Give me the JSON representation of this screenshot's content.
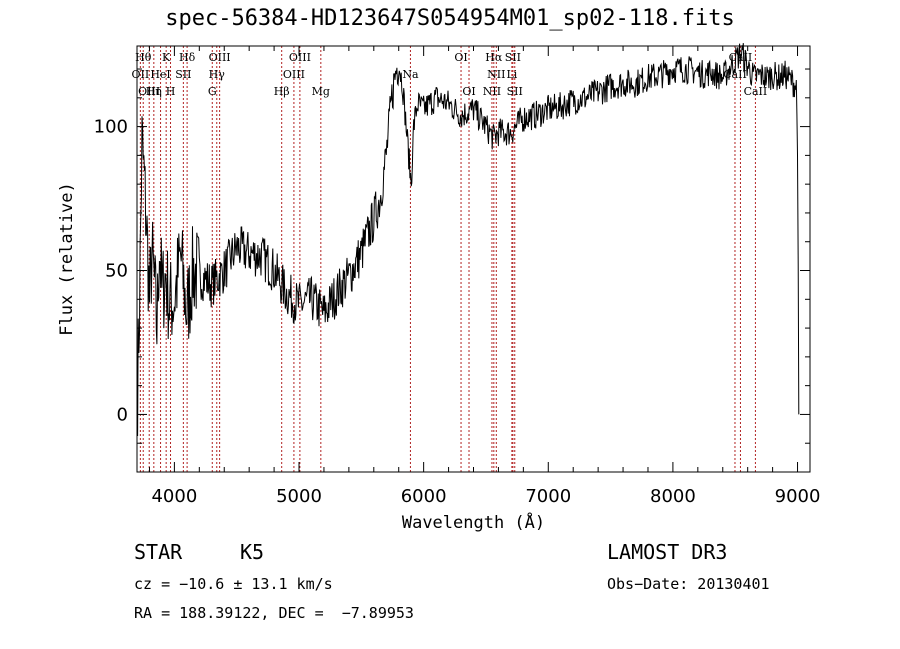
{
  "chart_data": {
    "type": "line",
    "title": "spec-56384-HD123647S054954M01_sp02-118.fits",
    "xlabel": "Wavelength (Å)",
    "ylabel": "Flux (relative)",
    "xlim": [
      3700,
      9100
    ],
    "ylim": [
      -20,
      128
    ],
    "xticks": [
      4000,
      5000,
      6000,
      7000,
      8000,
      9000
    ],
    "yticks": [
      0,
      50,
      100
    ],
    "series": [
      {
        "name": "flux",
        "x": [
          3700,
          3720,
          3740,
          3760,
          3780,
          3800,
          3820,
          3840,
          3860,
          3880,
          3900,
          3930,
          3960,
          4000,
          4050,
          4100,
          4150,
          4200,
          4250,
          4300,
          4400,
          4500,
          4600,
          4700,
          4800,
          4900,
          5000,
          5100,
          5200,
          5300,
          5400,
          5500,
          5600,
          5650,
          5700,
          5750,
          5780,
          5800,
          5830,
          5860,
          5880,
          5900,
          5920,
          5950,
          6000,
          6100,
          6200,
          6300,
          6400,
          6500,
          6560,
          6600,
          6700,
          6800,
          6900,
          7000,
          7100,
          7200,
          7300,
          7400,
          7500,
          7600,
          7700,
          7800,
          7900,
          8000,
          8100,
          8200,
          8250,
          8300,
          8350,
          8400,
          8500,
          8550,
          8600,
          8650,
          8700,
          8750,
          8800,
          8850,
          8900,
          8950,
          8990,
          9000,
          9010
        ],
        "y": [
          0,
          38,
          95,
          80,
          62,
          40,
          55,
          45,
          30,
          60,
          42,
          48,
          38,
          40,
          55,
          35,
          50,
          48,
          47,
          45,
          50,
          58,
          56,
          55,
          50,
          42,
          38,
          40,
          35,
          42,
          48,
          56,
          68,
          75,
          90,
          112,
          120,
          122,
          115,
          100,
          90,
          80,
          100,
          108,
          106,
          110,
          108,
          104,
          106,
          100,
          96,
          98,
          98,
          103,
          104,
          106,
          107,
          109,
          110,
          112,
          114,
          115,
          115,
          117,
          118,
          120,
          120,
          119,
          118,
          119,
          118,
          117,
          123,
          126,
          121,
          117,
          118,
          117,
          118,
          117,
          118,
          116,
          114,
          95,
          0
        ]
      }
    ],
    "line_markers": [
      {
        "wavelength": 3727,
        "labels": [
          "OII"
        ],
        "row": 1
      },
      {
        "wavelength": 3750,
        "labels": [
          "Hθ"
        ],
        "row": 0
      },
      {
        "wavelength": 3798,
        "labels": [
          "OIII"
        ],
        "row": 2
      },
      {
        "wavelength": 3835,
        "labels": [
          "Hη"
        ],
        "row": 2
      },
      {
        "wavelength": 3889,
        "labels": [
          "HeI"
        ],
        "row": 1
      },
      {
        "wavelength": 3934,
        "labels": [
          "K"
        ],
        "row": 0
      },
      {
        "wavelength": 3969,
        "labels": [
          "H"
        ],
        "row": 2
      },
      {
        "wavelength": 4072,
        "labels": [
          "SII"
        ],
        "row": 1
      },
      {
        "wavelength": 4102,
        "labels": [
          "Hδ"
        ],
        "row": 0
      },
      {
        "wavelength": 4304,
        "labels": [
          "G"
        ],
        "row": 2
      },
      {
        "wavelength": 4340,
        "labels": [
          "Hγ"
        ],
        "row": 1
      },
      {
        "wavelength": 4363,
        "labels": [
          "OIII"
        ],
        "row": 0
      },
      {
        "wavelength": 4861,
        "labels": [
          "Hβ"
        ],
        "row": 2
      },
      {
        "wavelength": 4959,
        "labels": [
          "OIII"
        ],
        "row": 1
      },
      {
        "wavelength": 5007,
        "labels": [
          "OIII"
        ],
        "row": 0
      },
      {
        "wavelength": 5175,
        "labels": [
          "Mg"
        ],
        "row": 2
      },
      {
        "wavelength": 5894,
        "labels": [
          "Na"
        ],
        "row": 1
      },
      {
        "wavelength": 6300,
        "labels": [
          "OI"
        ],
        "row": 0
      },
      {
        "wavelength": 6364,
        "labels": [
          "OI"
        ],
        "row": 2
      },
      {
        "wavelength": 6548,
        "labels": [
          "NII"
        ],
        "row": 2
      },
      {
        "wavelength": 6563,
        "labels": [
          "Hα"
        ],
        "row": 0
      },
      {
        "wavelength": 6583,
        "labels": [
          "NII"
        ],
        "row": 1
      },
      {
        "wavelength": 6708,
        "labels": [
          "Li"
        ],
        "row": 1
      },
      {
        "wavelength": 6716,
        "labels": [
          "SII"
        ],
        "row": 0
      },
      {
        "wavelength": 6731,
        "labels": [
          "SII"
        ],
        "row": 2
      },
      {
        "wavelength": 8498,
        "labels": [
          "CaII"
        ],
        "row": 1
      },
      {
        "wavelength": 8542,
        "labels": [
          "CaII"
        ],
        "row": 0
      },
      {
        "wavelength": 8662,
        "labels": [
          "CaII"
        ],
        "row": 2
      }
    ]
  },
  "info": {
    "object_class": "STAR",
    "subclass": "K5",
    "redshift": "cz = −10.6 ± 13.1 km/s",
    "coords": "RA = 188.39122, DEC =  −7.89953",
    "survey": "LAMOST DR3",
    "obs_date": "Obs−Date: 20130401"
  },
  "colors": {
    "spectrum": "#000000",
    "marker_line": "#b22222",
    "axis": "#000000"
  }
}
